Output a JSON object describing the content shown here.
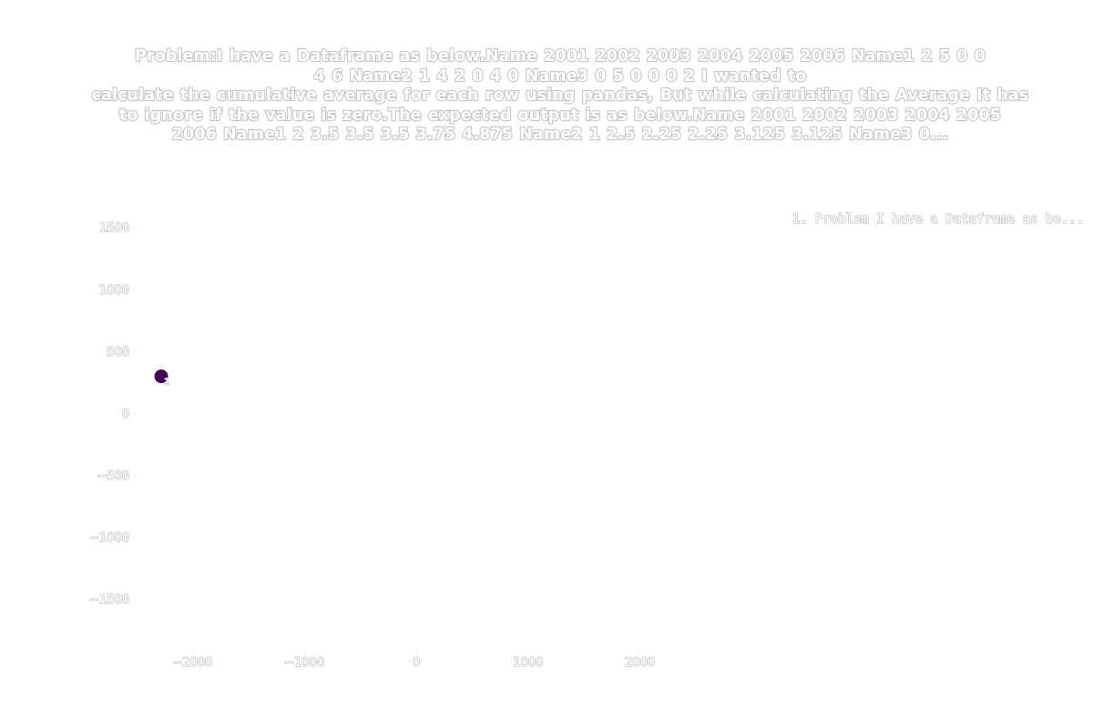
{
  "chart_data": {
    "type": "scatter",
    "title": "Problem:I have a Dataframe as below.Name  2001 2002 2003 2004 2005 2006  Name1  2    5     0    0    4    6  Name2  1    4    2    0    4    0  Name3  0    5    0    0    0    2 I wanted to calculate the cumulative average for each row using pandas, But while calculating the Average It has to ignore if the value is zero.The expected output is as below.Name  2001  2002  2003  2004  2005  2006  Name1  2    3.5    3.5  3.5   3.75  4.875  Name2  1    2.5   2.25  2.25  3.125 3.125  Name3  0...",
    "title_lines": [
      "Problem:I have a Dataframe as below.Name  2001 2002 2003 2004 2005 2006  Name1  2    5     0    0",
      "4    6  Name2  1    4    2    0    4    0  Name3  0    5    0    0    0    2 I wanted to",
      "calculate the cumulative average for each row using pandas, But while calculating the Average It has",
      "to ignore if the value is zero.The expected output is as below.Name  2001  2002  2003  2004  2005",
      "2006  Name1  2    3.5    3.5  3.5   3.75  4.875  Name2  1    2.5   2.25  2.25  3.125 3.125  Name3  0..."
    ],
    "xlim": [
      -2500,
      2100
    ],
    "ylim": [
      -1900,
      1700
    ],
    "xticks": [
      -2000,
      -1000,
      0,
      1000,
      2000
    ],
    "xtick_labels": [
      "−2000",
      "−1000",
      "0",
      "1000",
      "2000"
    ],
    "yticks": [
      1500,
      1000,
      500,
      0,
      -500,
      -1000,
      -1500
    ],
    "ytick_labels": [
      "1500",
      "1000",
      "500",
      "0",
      "−500",
      "−1000",
      "−1500"
    ],
    "grid": false,
    "legend_position": "top-right",
    "legend": [
      {
        "text": "1. Problem I have a Dataframe as be...",
        "color": "#ffffff"
      }
    ],
    "points": [
      {
        "x": -2280,
        "y": 300,
        "label": "1",
        "color": "#440154"
      }
    ]
  }
}
